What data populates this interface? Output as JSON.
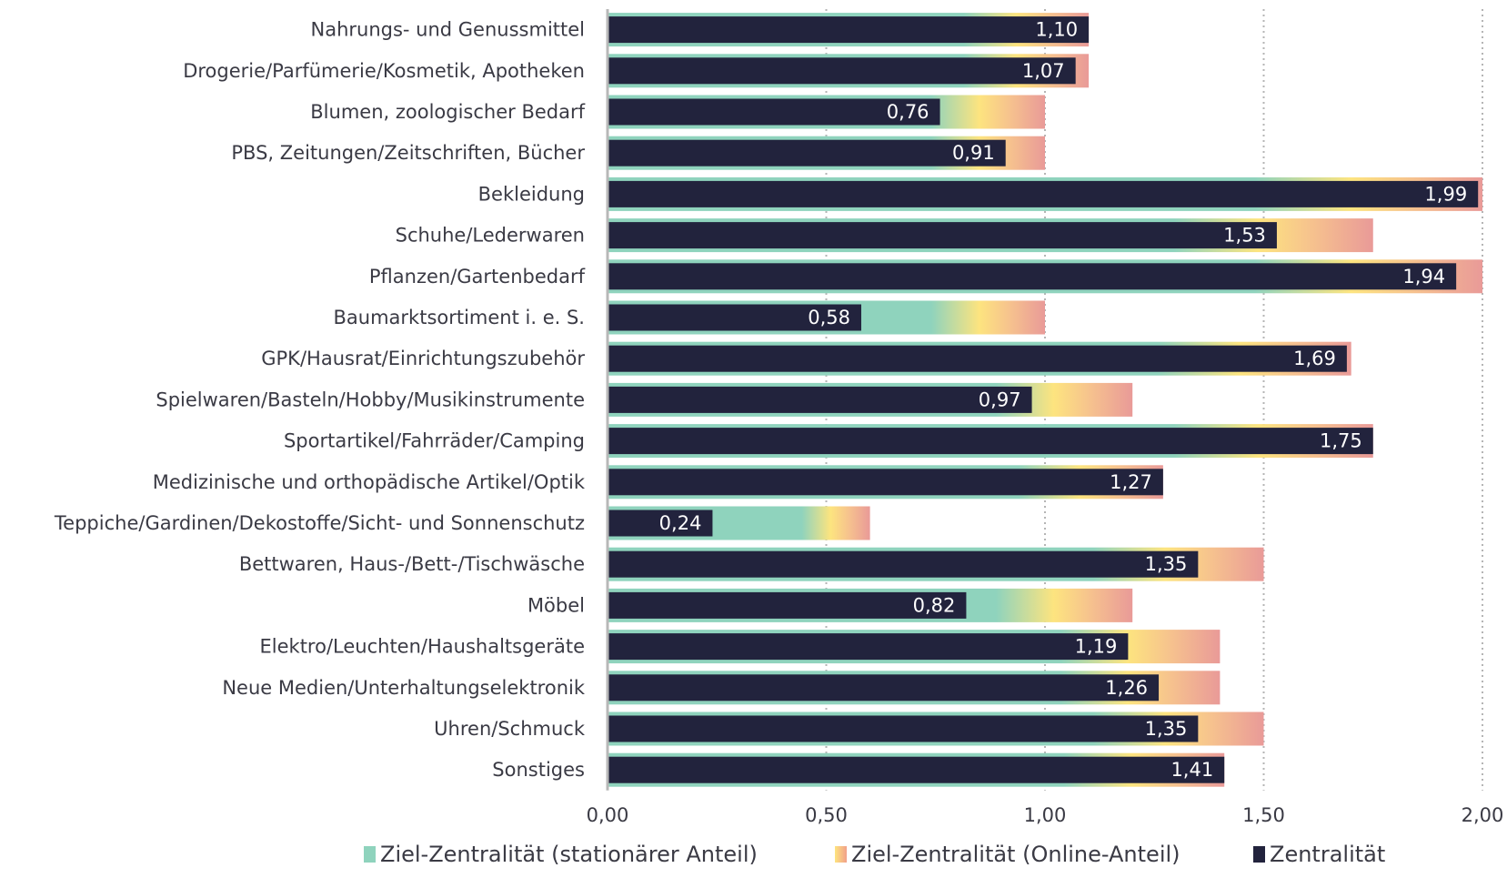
{
  "chart_data": {
    "type": "bar",
    "orientation": "horizontal",
    "categories": [
      "Nahrungs- und Genussmittel",
      "Drogerie/Parfümerie/Kosmetik, Apotheken",
      "Blumen, zoologischer Bedarf",
      "PBS, Zeitungen/Zeitschriften, Bücher",
      "Bekleidung",
      "Schuhe/Lederwaren",
      "Pflanzen/Gartenbedarf",
      "Baumarktsortiment i. e. S.",
      "GPK/Hausrat/Einrichtungszubehör",
      "Spielwaren/Basteln/Hobby/Musikinstrumente",
      "Sportartikel/Fahrräder/Camping",
      "Medizinische und orthopädische Artikel/Optik",
      "Teppiche/Gardinen/Dekostoffe/Sicht- und Sonnenschutz",
      "Bettwaren, Haus-/Bett-/Tischwäsche",
      "Möbel",
      "Elektro/Leuchten/Haushaltsgeräte",
      "Neue Medien/Unterhaltungselektronik",
      "Uhren/Schmuck",
      "Sonstiges"
    ],
    "series": [
      {
        "name": "Ziel-Zentralität (stationärer Anteil)",
        "color": "#8fd3bd",
        "values": [
          1.08,
          1.07,
          0.9,
          0.91,
          1.96,
          1.5,
          1.94,
          0.9,
          1.69,
          0.97,
          1.75,
          1.27,
          0.5,
          1.35,
          0.95,
          1.19,
          1.26,
          1.35,
          1.41
        ]
      },
      {
        "name": "Ziel-Zentralität (Online-Anteil)",
        "color": "#f6a07f",
        "values": [
          0.02,
          0.03,
          0.1,
          0.09,
          0.04,
          0.25,
          0.06,
          0.1,
          0.01,
          0.23,
          0.0,
          0.0,
          0.1,
          0.15,
          0.25,
          0.21,
          0.14,
          0.15,
          0.0
        ]
      },
      {
        "name": "Zentralität",
        "color": "#22233d",
        "values": [
          1.1,
          1.07,
          0.76,
          0.91,
          1.99,
          1.53,
          1.94,
          0.58,
          1.69,
          0.97,
          1.75,
          1.27,
          0.24,
          1.35,
          0.82,
          1.19,
          1.26,
          1.35,
          1.41
        ]
      }
    ],
    "value_labels": [
      "1,10",
      "1,07",
      "0,76",
      "0,91",
      "1,99",
      "1,53",
      "1,94",
      "0,58",
      "1,69",
      "0,97",
      "1,75",
      "1,27",
      "0,24",
      "1,35",
      "0,82",
      "1,19",
      "1,26",
      "1,35",
      "1,41"
    ],
    "xlim": [
      0,
      2
    ],
    "xticks": [
      0,
      0.5,
      1,
      1.5,
      2
    ],
    "xtick_labels": [
      "0,00",
      "0,50",
      "1,00",
      "1,50",
      "2,00"
    ],
    "grid": "vertical dotted",
    "legend_position": "bottom",
    "colors": {
      "teal": "#8fd3bd",
      "yellow": "#fde47f",
      "peach": "#f6c28e",
      "pink": "#e99a98",
      "navy": "#22233d",
      "grid": "#b5b5b5"
    }
  }
}
